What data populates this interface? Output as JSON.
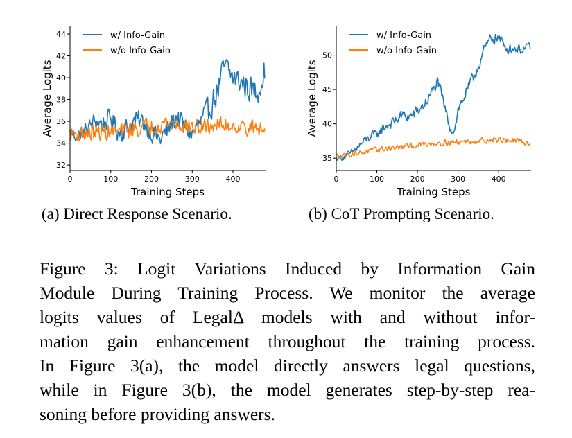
{
  "chart_data": [
    {
      "type": "line",
      "title": "",
      "xlabel": "Training Steps",
      "ylabel": "Average Logits",
      "xlim": [
        0,
        480
      ],
      "ylim": [
        31.5,
        44.7
      ],
      "xticks": [
        0,
        100,
        200,
        300,
        400
      ],
      "yticks": [
        32,
        34,
        36,
        38,
        40,
        42,
        44
      ],
      "legend_position": "top-left",
      "grid": false,
      "colors": {
        "w_info_gain": "#1f77b4",
        "wo_info_gain": "#ff7f0e"
      },
      "series": [
        {
          "name": "w/ Info-Gain",
          "x": [
            0,
            20,
            40,
            60,
            80,
            100,
            120,
            140,
            160,
            180,
            200,
            220,
            240,
            260,
            280,
            300,
            320,
            340,
            360,
            380,
            400,
            420,
            440,
            460,
            478
          ],
          "y": [
            35.0,
            34.6,
            35.2,
            36.0,
            35.8,
            36.3,
            35.0,
            35.4,
            36.1,
            35.9,
            35.0,
            34.3,
            35.2,
            36.4,
            35.6,
            34.8,
            35.8,
            37.0,
            38.6,
            41.0,
            40.0,
            39.6,
            39.0,
            38.6,
            40.8
          ],
          "spread": [
            1.0,
            1.2,
            1.2,
            1.4,
            1.5,
            1.5,
            1.6,
            1.6,
            1.6,
            1.6,
            1.6,
            1.8,
            1.8,
            1.7,
            1.6,
            1.6,
            1.8,
            2.0,
            2.2,
            2.2,
            2.0,
            2.0,
            2.0,
            2.0,
            2.0
          ]
        },
        {
          "name": "w/o Info-Gain",
          "x": [
            0,
            40,
            80,
            120,
            160,
            200,
            240,
            280,
            320,
            360,
            400,
            440,
            478
          ],
          "y": [
            34.8,
            34.9,
            35.0,
            35.1,
            35.3,
            35.6,
            35.9,
            35.6,
            35.4,
            35.7,
            35.6,
            35.4,
            35.2
          ],
          "spread": [
            1.2,
            1.3,
            1.3,
            1.3,
            1.3,
            1.3,
            1.3,
            1.3,
            1.2,
            1.2,
            1.2,
            1.2,
            1.2
          ]
        }
      ]
    },
    {
      "type": "line",
      "title": "",
      "xlabel": "Training Steps",
      "ylabel": "Average Logits",
      "xlim": [
        0,
        480
      ],
      "ylim": [
        33.2,
        54.2
      ],
      "xticks": [
        0,
        100,
        200,
        300,
        400
      ],
      "yticks": [
        35,
        40,
        45,
        50
      ],
      "legend_position": "top-left",
      "grid": false,
      "colors": {
        "w_info_gain": "#1f77b4",
        "wo_info_gain": "#ff7f0e"
      },
      "series": [
        {
          "name": "w/ Info-Gain",
          "x": [
            0,
            20,
            40,
            60,
            80,
            100,
            120,
            140,
            160,
            180,
            200,
            220,
            240,
            250,
            260,
            280,
            290,
            300,
            320,
            340,
            360,
            380,
            400,
            420,
            440,
            460,
            478
          ],
          "y": [
            35.0,
            35.2,
            35.8,
            37.0,
            38.0,
            38.5,
            39.6,
            40.2,
            41.2,
            41.0,
            41.8,
            43.0,
            45.0,
            46.2,
            44.0,
            39.5,
            38.8,
            42.0,
            44.5,
            47.0,
            50.0,
            52.5,
            52.5,
            51.0,
            51.0,
            50.8,
            51.2
          ],
          "spread": [
            0.6,
            0.8,
            1.0,
            1.0,
            1.2,
            1.2,
            1.3,
            1.3,
            1.4,
            1.4,
            1.4,
            1.4,
            1.4,
            1.2,
            1.4,
            1.2,
            1.0,
            1.4,
            1.4,
            1.6,
            1.6,
            1.4,
            1.4,
            1.2,
            1.2,
            1.2,
            1.2
          ]
        },
        {
          "name": "w/o Info-Gain",
          "x": [
            0,
            40,
            80,
            120,
            160,
            200,
            240,
            280,
            320,
            360,
            400,
            440,
            478
          ],
          "y": [
            35.3,
            35.6,
            36.0,
            36.4,
            36.6,
            36.9,
            37.2,
            37.3,
            37.4,
            37.6,
            37.7,
            37.5,
            37.2
          ],
          "spread": [
            0.6,
            0.6,
            0.6,
            0.7,
            0.7,
            0.7,
            0.7,
            0.7,
            0.7,
            0.7,
            0.7,
            0.7,
            0.6
          ]
        }
      ]
    }
  ],
  "subcaptions": {
    "a": "(a) Direct Response Scenario.",
    "b": "(b) CoT Prompting Scenario."
  },
  "caption_lines": [
    "Figure 3: Logit Variations Induced by Information Gain",
    "Module During Training Process. We monitor the average",
    "logits values of LegalΔ models with and without infor-",
    "mation gain enhancement throughout the training process.",
    "In Figure 3(a), the model directly answers legal questions,",
    "while in Figure 3(b), the model generates step-by-step rea-",
    "soning before providing answers."
  ]
}
